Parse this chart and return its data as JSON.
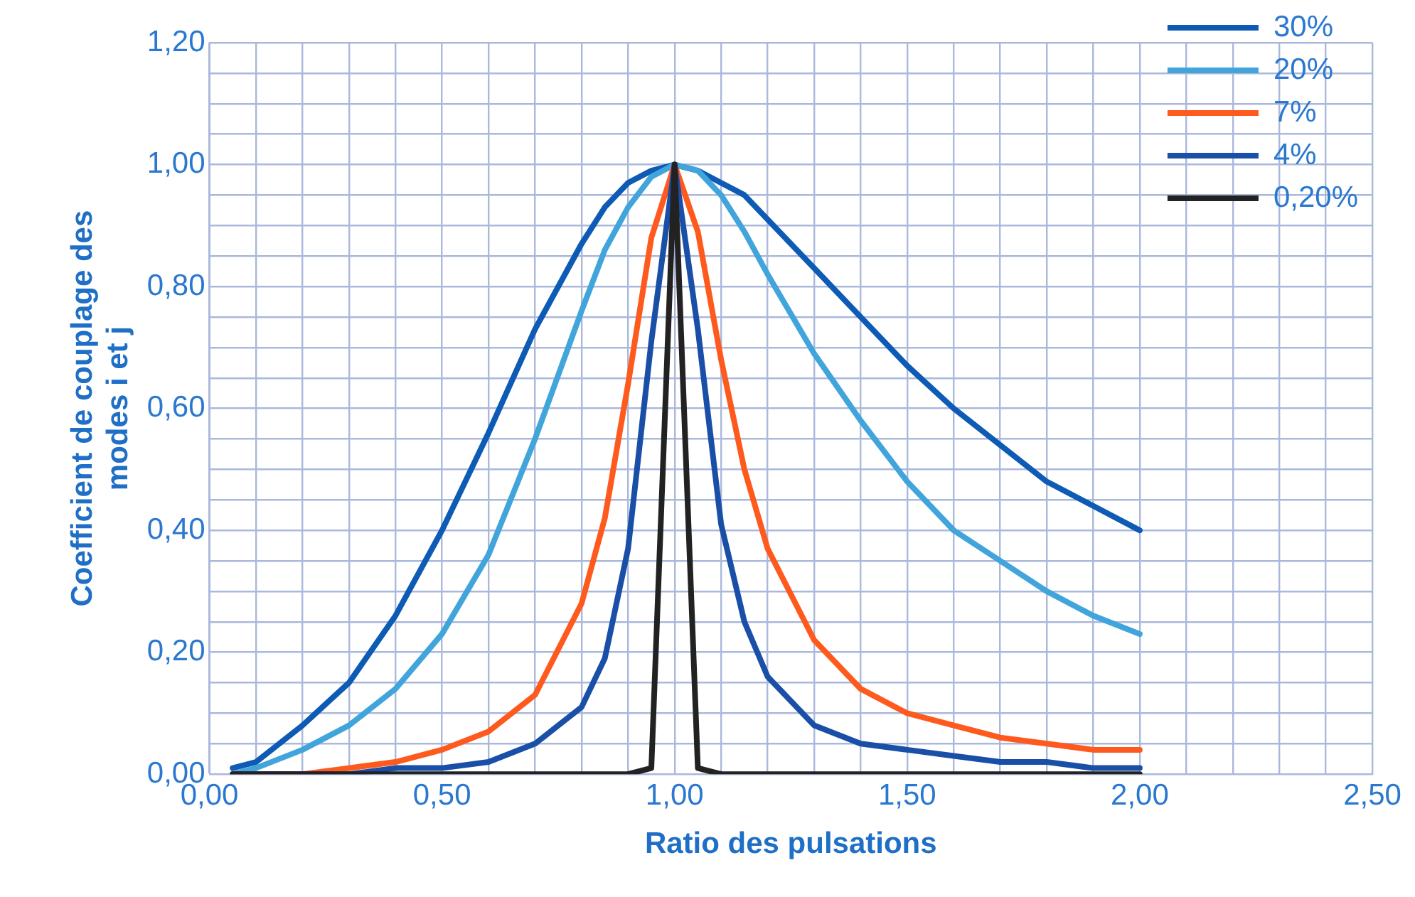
{
  "chart_data": {
    "type": "line",
    "xlabel": "Ratio des pulsations",
    "ylabel": "Coefficient de couplage des modes i et j",
    "x": [
      0.05,
      0.1,
      0.2,
      0.3,
      0.4,
      0.5,
      0.6,
      0.7,
      0.8,
      0.85,
      0.9,
      0.95,
      1,
      1.05,
      1.1,
      1.15,
      1.2,
      1.3,
      1.4,
      1.5,
      1.6,
      1.7,
      1.8,
      1.9,
      2.0
    ],
    "series": [
      {
        "name": "30%",
        "color": "#0d5bb5",
        "values": [
          0.01,
          0.02,
          0.08,
          0.15,
          0.26,
          0.4,
          0.56,
          0.73,
          0.87,
          0.93,
          0.97,
          0.99,
          1,
          0.99,
          0.97,
          0.95,
          0.91,
          0.83,
          0.75,
          0.67,
          0.6,
          0.54,
          0.48,
          0.44,
          0.4
        ]
      },
      {
        "name": "20%",
        "color": "#41a5dc",
        "values": [
          0.0,
          0.01,
          0.04,
          0.08,
          0.14,
          0.23,
          0.36,
          0.55,
          0.76,
          0.86,
          0.93,
          0.98,
          1,
          0.99,
          0.95,
          0.89,
          0.82,
          0.69,
          0.58,
          0.48,
          0.4,
          0.35,
          0.3,
          0.26,
          0.23
        ]
      },
      {
        "name": "7%",
        "color": "#ff5a1e",
        "values": [
          0.0,
          0.0,
          0.0,
          0.01,
          0.02,
          0.04,
          0.07,
          0.13,
          0.28,
          0.42,
          0.64,
          0.88,
          1,
          0.89,
          0.68,
          0.5,
          0.37,
          0.22,
          0.14,
          0.1,
          0.08,
          0.06,
          0.05,
          0.04,
          0.04
        ]
      },
      {
        "name": "4%",
        "color": "#1a4fa8",
        "values": [
          0.0,
          0.0,
          0.0,
          0.0,
          0.01,
          0.01,
          0.02,
          0.05,
          0.11,
          0.19,
          0.37,
          0.71,
          1,
          0.73,
          0.41,
          0.25,
          0.16,
          0.08,
          0.05,
          0.04,
          0.03,
          0.02,
          0.02,
          0.01,
          0.01
        ]
      },
      {
        "name": "0,20%",
        "color": "#222222",
        "values": [
          0.0,
          0.0,
          0.0,
          0.0,
          0.0,
          0.0,
          0.0,
          0.0,
          0.0,
          0.0,
          0.0,
          0.01,
          1,
          0.01,
          0.0,
          0.0,
          0.0,
          0.0,
          0.0,
          0.0,
          0.0,
          0.0,
          0.0,
          0.0,
          0.0
        ]
      }
    ],
    "xlim": [
      0,
      2.5
    ],
    "xticks": [
      {
        "value": 0,
        "label": "0,00"
      },
      {
        "value": 0.1,
        "label": null
      },
      {
        "value": 0.2,
        "label": null
      },
      {
        "value": 0.3,
        "label": null
      },
      {
        "value": 0.4,
        "label": null
      },
      {
        "value": 0.5,
        "label": "0,50"
      },
      {
        "value": 0.6,
        "label": null
      },
      {
        "value": 0.7,
        "label": null
      },
      {
        "value": 0.8,
        "label": null
      },
      {
        "value": 0.9,
        "label": null
      },
      {
        "value": 1,
        "label": "1,00"
      },
      {
        "value": 1.1,
        "label": null
      },
      {
        "value": 1.2,
        "label": null
      },
      {
        "value": 1.3,
        "label": null
      },
      {
        "value": 1.4,
        "label": null
      },
      {
        "value": 1.5,
        "label": "1,50"
      },
      {
        "value": 1.6,
        "label": null
      },
      {
        "value": 1.7,
        "label": null
      },
      {
        "value": 1.8,
        "label": null
      },
      {
        "value": 1.9,
        "label": null
      },
      {
        "value": 2,
        "label": "2,00"
      },
      {
        "value": 2.1,
        "label": null
      },
      {
        "value": 2.2,
        "label": null
      },
      {
        "value": 2.3,
        "label": null
      },
      {
        "value": 2.4,
        "label": null
      },
      {
        "value": 2.5,
        "label": "2,50"
      }
    ],
    "ylim": [
      0,
      1.2
    ],
    "yticks": [
      {
        "value": 0,
        "label": "0,00"
      },
      {
        "value": 0.05,
        "label": null
      },
      {
        "value": 0.1,
        "label": null
      },
      {
        "value": 0.15,
        "label": null
      },
      {
        "value": 0.2,
        "label": "0,20"
      },
      {
        "value": 0.25,
        "label": null
      },
      {
        "value": 0.3,
        "label": null
      },
      {
        "value": 0.35,
        "label": null
      },
      {
        "value": 0.4,
        "label": "0,40"
      },
      {
        "value": 0.45,
        "label": null
      },
      {
        "value": 0.5,
        "label": null
      },
      {
        "value": 0.55,
        "label": null
      },
      {
        "value": 0.6,
        "label": "0,60"
      },
      {
        "value": 0.65,
        "label": null
      },
      {
        "value": 0.7,
        "label": null
      },
      {
        "value": 0.75,
        "label": null
      },
      {
        "value": 0.8,
        "label": "0,80"
      },
      {
        "value": 0.85,
        "label": null
      },
      {
        "value": 0.9,
        "label": null
      },
      {
        "value": 0.95,
        "label": null
      },
      {
        "value": 1,
        "label": "1,00"
      },
      {
        "value": 1.05,
        "label": null
      },
      {
        "value": 1.1,
        "label": null
      },
      {
        "value": 1.15,
        "label": null
      },
      {
        "value": 1.2,
        "label": "1,20"
      }
    ],
    "grid": true,
    "legend": "top right",
    "marker": "none",
    "line_style": "solid"
  }
}
